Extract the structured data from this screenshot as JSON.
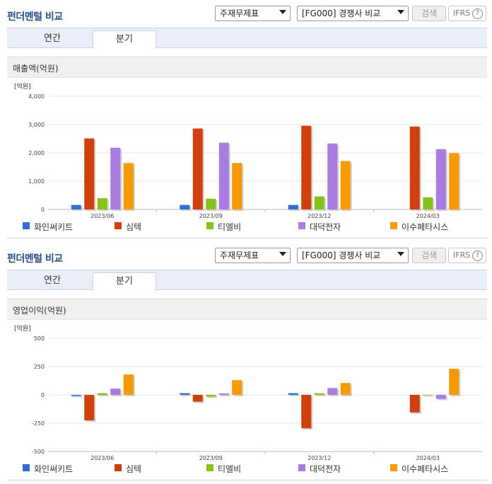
{
  "sections": [
    {
      "title": "펀더멘털 비교",
      "select1": "주재무제표",
      "select2": "[FG000] 경쟁사 비교",
      "search_label": "검색",
      "ifrs_label": "IFRS",
      "help": "?",
      "tabs": [
        "연간",
        "분기"
      ],
      "active_tab": 1,
      "metric_label": "매출액(억원)"
    },
    {
      "title": "펀더멘털 비교",
      "select1": "주재무제표",
      "select2": "[FG000] 경쟁사 비교",
      "search_label": "검색",
      "ifrs_label": "IFRS",
      "help": "?",
      "tabs": [
        "연간",
        "분기"
      ],
      "active_tab": 1,
      "metric_label": "영업이익(억원)"
    }
  ],
  "legend_colors": [
    "#2f6fd0",
    "#d1400c",
    "#86c31a",
    "#a87ce0",
    "#f79a00"
  ],
  "chart_data": [
    {
      "type": "bar",
      "unit": "[억원]",
      "categories": [
        "2023/06",
        "2023/09",
        "2023/12",
        "2024/03"
      ],
      "ylim": [
        0,
        4000
      ],
      "yticks": [
        0,
        1000,
        2000,
        3000,
        4000
      ],
      "ytick_labels": [
        "0",
        "1,000",
        "2,000",
        "3,000",
        "4,000"
      ],
      "grid": true,
      "legend": "bottom",
      "series": [
        {
          "name": "화인써키트",
          "values": [
            160,
            160,
            160,
            null
          ]
        },
        {
          "name": "심텍",
          "values": [
            2510,
            2860,
            2960,
            2930
          ]
        },
        {
          "name": "티엘비",
          "values": [
            400,
            380,
            460,
            430
          ]
        },
        {
          "name": "대덕전자",
          "values": [
            2180,
            2360,
            2330,
            2130
          ]
        },
        {
          "name": "이수페타시스",
          "values": [
            1640,
            1640,
            1710,
            1990
          ]
        }
      ]
    },
    {
      "type": "bar",
      "unit": "[억원]",
      "categories": [
        "2023/06",
        "2023/09",
        "2023/12",
        "2024/03"
      ],
      "ylim": [
        -500,
        500
      ],
      "yticks": [
        -500,
        -250,
        0,
        250,
        500
      ],
      "ytick_labels": [
        "-500",
        "-250",
        "0",
        "250",
        "500"
      ],
      "grid": true,
      "legend": "bottom",
      "series": [
        {
          "name": "화인써키트",
          "values": [
            -10,
            15,
            15,
            null
          ]
        },
        {
          "name": "심텍",
          "values": [
            -225,
            -60,
            -295,
            -155
          ]
        },
        {
          "name": "티엘비",
          "values": [
            15,
            -15,
            15,
            0
          ]
        },
        {
          "name": "대덕전자",
          "values": [
            55,
            12,
            60,
            -35
          ]
        },
        {
          "name": "이수페타시스",
          "values": [
            180,
            130,
            105,
            230
          ]
        }
      ]
    }
  ]
}
